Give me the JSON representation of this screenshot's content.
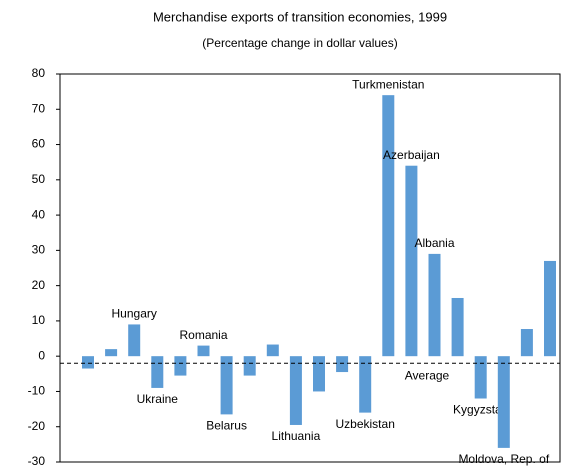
{
  "chart_data": {
    "type": "bar",
    "title": "Merchandise exports of transition economies, 1999",
    "subtitle": "(Percentage change in dollar values)",
    "categories": [
      null,
      null,
      "Hungary",
      "Ukraine",
      null,
      "Romania",
      "Belarus",
      null,
      null,
      "Lithuania",
      null,
      null,
      "Uzbekistan",
      "Turkmenistan",
      "Azerbaijan",
      "Albania",
      null,
      "Kygyzstan",
      "Moldova, Rep. of",
      null,
      null
    ],
    "values": [
      -3.5,
      2,
      9,
      -9,
      -5.5,
      3,
      -16.5,
      -5.5,
      3.3,
      -19.5,
      -10,
      -4.5,
      -16,
      74,
      54,
      29,
      16.5,
      -12,
      -26,
      7.7,
      27
    ],
    "color": "#5b9bd5",
    "average": -2,
    "average_label": "Average",
    "ylim": [
      -30,
      80
    ],
    "yticks": [
      -30,
      -20,
      -10,
      0,
      10,
      20,
      30,
      40,
      50,
      60,
      70,
      80
    ]
  }
}
